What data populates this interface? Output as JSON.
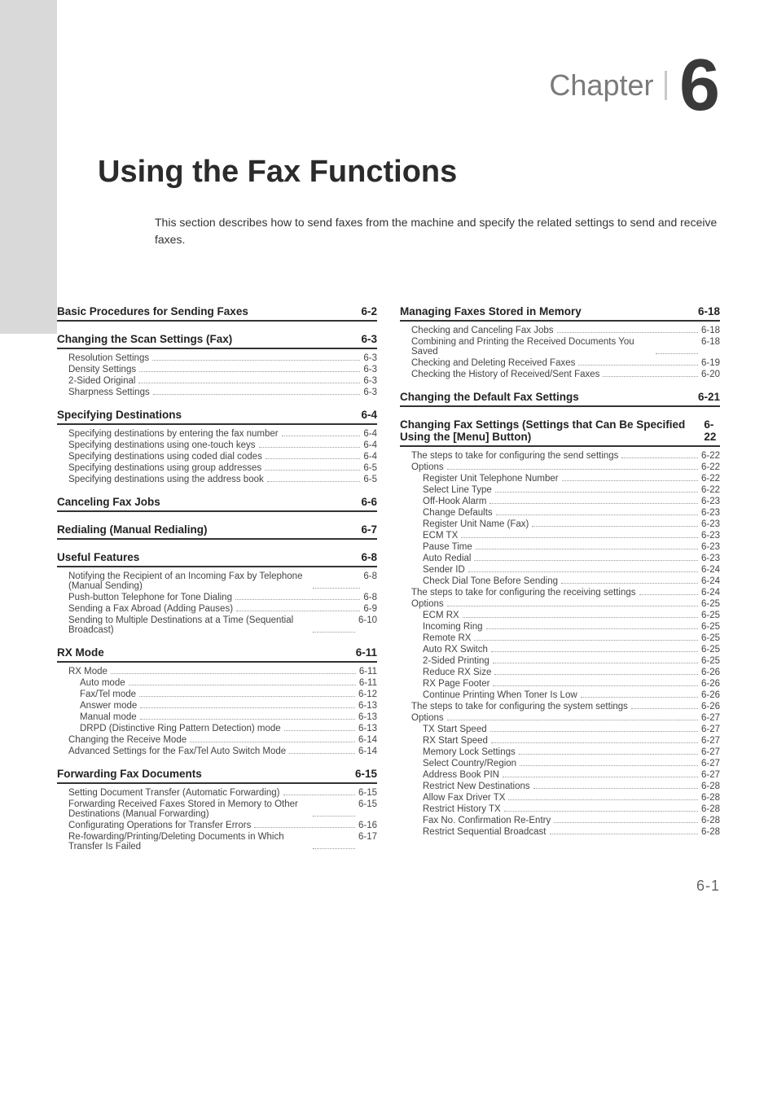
{
  "chapter": {
    "label": "Chapter",
    "number": "6"
  },
  "title": "Using the Fax Functions",
  "intro": "This section describes how to send faxes from the machine and specify the related settings to send and receive faxes.",
  "foot": "6-1",
  "left": [
    {
      "type": "h1",
      "label": "Basic Procedures for Sending Faxes",
      "pg": "6-2",
      "first": true
    },
    {
      "type": "h1",
      "label": "Changing the Scan Settings (Fax)",
      "pg": "6-3"
    },
    {
      "type": "h2",
      "label": "Resolution Settings",
      "pg": "6-3"
    },
    {
      "type": "h2",
      "label": "Density Settings",
      "pg": "6-3"
    },
    {
      "type": "h2",
      "label": "2-Sided Original",
      "pg": "6-3"
    },
    {
      "type": "h2",
      "label": "Sharpness Settings",
      "pg": "6-3"
    },
    {
      "type": "h1",
      "label": "Specifying Destinations",
      "pg": "6-4"
    },
    {
      "type": "h2",
      "label": "Specifying destinations by entering the fax number",
      "pg": "6-4"
    },
    {
      "type": "h2",
      "label": "Specifying destinations using one-touch keys",
      "pg": "6-4"
    },
    {
      "type": "h2",
      "label": "Specifying destinations using coded dial codes",
      "pg": "6-4"
    },
    {
      "type": "h2",
      "label": "Specifying destinations using group addresses",
      "pg": "6-5"
    },
    {
      "type": "h2",
      "label": "Specifying destinations using the address book",
      "pg": "6-5"
    },
    {
      "type": "h1",
      "label": "Canceling Fax Jobs",
      "pg": "6-6"
    },
    {
      "type": "h1",
      "label": "Redialing (Manual Redialing)",
      "pg": "6-7"
    },
    {
      "type": "h1",
      "label": "Useful Features",
      "pg": "6-8"
    },
    {
      "type": "h2",
      "label": "Notifying the Recipient of an Incoming Fax by Telephone (Manual Sending)",
      "pg": "6-8"
    },
    {
      "type": "h2",
      "label": "Push-button Telephone for Tone Dialing",
      "pg": "6-8"
    },
    {
      "type": "h2",
      "label": "Sending a Fax Abroad (Adding Pauses)",
      "pg": "6-9"
    },
    {
      "type": "h2",
      "label": "Sending to Multiple Destinations at a Time (Sequential Broadcast)",
      "pg": "6-10"
    },
    {
      "type": "h1",
      "label": "RX Mode",
      "pg": "6-11"
    },
    {
      "type": "h2",
      "label": "RX Mode",
      "pg": "6-11"
    },
    {
      "type": "h3",
      "label": "Auto mode",
      "pg": "6-11"
    },
    {
      "type": "h3",
      "label": "Fax/Tel mode",
      "pg": "6-12"
    },
    {
      "type": "h3",
      "label": "Answer mode",
      "pg": "6-13"
    },
    {
      "type": "h3",
      "label": "Manual mode",
      "pg": "6-13"
    },
    {
      "type": "h3",
      "label": "DRPD (Distinctive Ring Pattern Detection) mode",
      "pg": "6-13"
    },
    {
      "type": "h2",
      "label": "Changing the Receive Mode",
      "pg": "6-14"
    },
    {
      "type": "h2",
      "label": "Advanced Settings for the Fax/Tel Auto Switch Mode",
      "pg": "6-14"
    },
    {
      "type": "h1",
      "label": "Forwarding Fax Documents",
      "pg": "6-15"
    },
    {
      "type": "h2",
      "label": "Setting Document Transfer (Automatic Forwarding)",
      "pg": "6-15"
    },
    {
      "type": "h2",
      "label": "Forwarding Received Faxes Stored in Memory to Other Destinations (Manual Forwarding)",
      "pg": "6-15"
    },
    {
      "type": "h2",
      "label": "Configurating Operations for Transfer Errors",
      "pg": "6-16"
    },
    {
      "type": "h2",
      "label": "Re-fowarding/Printing/Deleting Documents in Which Transfer Is Failed",
      "pg": "6-17"
    }
  ],
  "right": [
    {
      "type": "h1",
      "label": "Managing Faxes Stored in Memory",
      "pg": "6-18",
      "first": true
    },
    {
      "type": "h2",
      "label": "Checking and Canceling Fax Jobs",
      "pg": "6-18"
    },
    {
      "type": "h2",
      "label": "Combining and Printing the Received Documents You Saved",
      "pg": "6-18"
    },
    {
      "type": "h2",
      "label": "Checking and Deleting Received Faxes",
      "pg": "6-19"
    },
    {
      "type": "h2",
      "label": "Checking the History of Received/Sent Faxes",
      "pg": "6-20"
    },
    {
      "type": "h1",
      "label": "Changing the Default Fax Settings",
      "pg": "6-21"
    },
    {
      "type": "h1",
      "label": "Changing Fax Settings (Settings that Can Be Specified Using the [Menu] Button)",
      "pg": "6-22"
    },
    {
      "type": "h2",
      "label": "The steps to take for configuring the send settings",
      "pg": "6-22"
    },
    {
      "type": "h2",
      "label": "Options",
      "pg": "6-22"
    },
    {
      "type": "h3",
      "label": "Register Unit Telephone Number",
      "pg": "6-22"
    },
    {
      "type": "h3",
      "label": "Select Line Type",
      "pg": "6-22"
    },
    {
      "type": "h3",
      "label": "Off-Hook Alarm",
      "pg": "6-23"
    },
    {
      "type": "h3",
      "label": "Change Defaults",
      "pg": "6-23"
    },
    {
      "type": "h3",
      "label": "Register Unit Name (Fax)",
      "pg": "6-23"
    },
    {
      "type": "h3",
      "label": "ECM TX",
      "pg": "6-23"
    },
    {
      "type": "h3",
      "label": "Pause Time",
      "pg": "6-23"
    },
    {
      "type": "h3",
      "label": "Auto Redial",
      "pg": "6-23"
    },
    {
      "type": "h3",
      "label": "Sender ID",
      "pg": "6-24"
    },
    {
      "type": "h3",
      "label": "Check Dial Tone Before Sending",
      "pg": "6-24"
    },
    {
      "type": "h2",
      "label": "The steps to take for configuring the receiving settings",
      "pg": "6-24"
    },
    {
      "type": "h2",
      "label": "Options",
      "pg": "6-25"
    },
    {
      "type": "h3",
      "label": "ECM RX",
      "pg": "6-25"
    },
    {
      "type": "h3",
      "label": "Incoming Ring",
      "pg": "6-25"
    },
    {
      "type": "h3",
      "label": "Remote RX",
      "pg": "6-25"
    },
    {
      "type": "h3",
      "label": "Auto RX Switch",
      "pg": "6-25"
    },
    {
      "type": "h3",
      "label": "2-Sided Printing",
      "pg": "6-25"
    },
    {
      "type": "h3",
      "label": "Reduce RX Size",
      "pg": "6-26"
    },
    {
      "type": "h3",
      "label": "RX Page Footer",
      "pg": "6-26"
    },
    {
      "type": "h3",
      "label": "Continue Printing When Toner Is Low",
      "pg": "6-26"
    },
    {
      "type": "h2",
      "label": "The steps to take for configuring the system settings",
      "pg": "6-26"
    },
    {
      "type": "h2",
      "label": "Options",
      "pg": "6-27"
    },
    {
      "type": "h3",
      "label": "TX Start Speed",
      "pg": "6-27"
    },
    {
      "type": "h3",
      "label": "RX Start Speed",
      "pg": "6-27"
    },
    {
      "type": "h3",
      "label": "Memory Lock Settings",
      "pg": "6-27"
    },
    {
      "type": "h3",
      "label": "Select Country/Region",
      "pg": "6-27"
    },
    {
      "type": "h3",
      "label": "Address Book PIN",
      "pg": "6-27"
    },
    {
      "type": "h3",
      "label": "Restrict New Destinations",
      "pg": "6-28"
    },
    {
      "type": "h3",
      "label": "Allow Fax Driver TX",
      "pg": "6-28"
    },
    {
      "type": "h3",
      "label": "Restrict History TX",
      "pg": "6-28"
    },
    {
      "type": "h3",
      "label": "Fax No. Confirmation Re-Entry",
      "pg": "6-28"
    },
    {
      "type": "h3",
      "label": "Restrict Sequential Broadcast",
      "pg": "6-28"
    }
  ]
}
